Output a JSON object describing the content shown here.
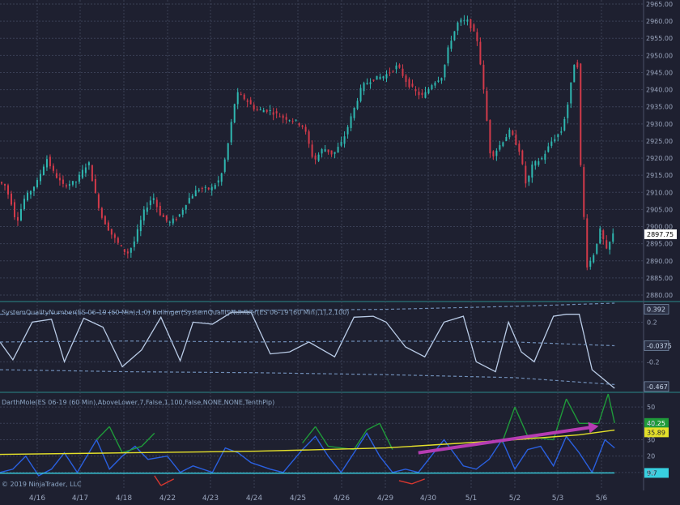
{
  "chart_data": [
    {
      "type": "candlestick",
      "title": "",
      "ylim": [
        2880,
        2965
      ],
      "ytick_labels": [
        "2965.00",
        "2960.00",
        "2955.00",
        "2950.00",
        "2945.00",
        "2940.00",
        "2935.00",
        "2930.00",
        "2925.00",
        "2920.00",
        "2915.00",
        "2910.00",
        "2905.00",
        "2900.00",
        "2895.00",
        "2890.00",
        "2885.00",
        "2880.00"
      ],
      "last_price": "2897.75",
      "up_color": "#2fb7b0",
      "down_color": "#d23a4a",
      "close_path": [
        {
          "x": 0,
          "y": 2913
        },
        {
          "x": 0.01,
          "y": 2912
        },
        {
          "x": 0.02,
          "y": 2907
        },
        {
          "x": 0.028,
          "y": 2901
        },
        {
          "x": 0.04,
          "y": 2908
        },
        {
          "x": 0.06,
          "y": 2913
        },
        {
          "x": 0.075,
          "y": 2920
        },
        {
          "x": 0.085,
          "y": 2916
        },
        {
          "x": 0.1,
          "y": 2912
        },
        {
          "x": 0.12,
          "y": 2913
        },
        {
          "x": 0.14,
          "y": 2919
        },
        {
          "x": 0.15,
          "y": 2910
        },
        {
          "x": 0.16,
          "y": 2903
        },
        {
          "x": 0.175,
          "y": 2898
        },
        {
          "x": 0.19,
          "y": 2894
        },
        {
          "x": 0.2,
          "y": 2892
        },
        {
          "x": 0.21,
          "y": 2895
        },
        {
          "x": 0.225,
          "y": 2904
        },
        {
          "x": 0.24,
          "y": 2909
        },
        {
          "x": 0.25,
          "y": 2904
        },
        {
          "x": 0.265,
          "y": 2901
        },
        {
          "x": 0.28,
          "y": 2903
        },
        {
          "x": 0.295,
          "y": 2908
        },
        {
          "x": 0.31,
          "y": 2911
        },
        {
          "x": 0.33,
          "y": 2911
        },
        {
          "x": 0.345,
          "y": 2914
        },
        {
          "x": 0.355,
          "y": 2922
        },
        {
          "x": 0.365,
          "y": 2934
        },
        {
          "x": 0.37,
          "y": 2939
        },
        {
          "x": 0.385,
          "y": 2937
        },
        {
          "x": 0.4,
          "y": 2934
        },
        {
          "x": 0.42,
          "y": 2934
        },
        {
          "x": 0.44,
          "y": 2932
        },
        {
          "x": 0.46,
          "y": 2931
        },
        {
          "x": 0.475,
          "y": 2929
        },
        {
          "x": 0.49,
          "y": 2919
        },
        {
          "x": 0.505,
          "y": 2923
        },
        {
          "x": 0.52,
          "y": 2921
        },
        {
          "x": 0.535,
          "y": 2925
        },
        {
          "x": 0.55,
          "y": 2933
        },
        {
          "x": 0.565,
          "y": 2941
        },
        {
          "x": 0.58,
          "y": 2943
        },
        {
          "x": 0.6,
          "y": 2944
        },
        {
          "x": 0.62,
          "y": 2947
        },
        {
          "x": 0.635,
          "y": 2942
        },
        {
          "x": 0.65,
          "y": 2939
        },
        {
          "x": 0.66,
          "y": 2938
        },
        {
          "x": 0.675,
          "y": 2942
        },
        {
          "x": 0.69,
          "y": 2944
        },
        {
          "x": 0.7,
          "y": 2953
        },
        {
          "x": 0.715,
          "y": 2960
        },
        {
          "x": 0.73,
          "y": 2960
        },
        {
          "x": 0.745,
          "y": 2954
        },
        {
          "x": 0.755,
          "y": 2938
        },
        {
          "x": 0.765,
          "y": 2920
        },
        {
          "x": 0.78,
          "y": 2924
        },
        {
          "x": 0.795,
          "y": 2928
        },
        {
          "x": 0.81,
          "y": 2922
        },
        {
          "x": 0.82,
          "y": 2912
        },
        {
          "x": 0.83,
          "y": 2918
        },
        {
          "x": 0.845,
          "y": 2920
        },
        {
          "x": 0.86,
          "y": 2925
        },
        {
          "x": 0.875,
          "y": 2928
        },
        {
          "x": 0.885,
          "y": 2936
        },
        {
          "x": 0.895,
          "y": 2948
        },
        {
          "x": 0.9,
          "y": 2947
        },
        {
          "x": 0.905,
          "y": 2916
        },
        {
          "x": 0.915,
          "y": 2888
        },
        {
          "x": 0.925,
          "y": 2892
        },
        {
          "x": 0.935,
          "y": 2899
        },
        {
          "x": 0.945,
          "y": 2893
        },
        {
          "x": 0.955,
          "y": 2897.75
        }
      ]
    },
    {
      "type": "line",
      "label": "SystemQualityNumber(ES 06-19 (60 Min),1,0)  Bollinger(SystemQualityNumber(ES 06-19 (60 Min),1),2,100)",
      "ylim": [
        -0.5,
        0.4
      ],
      "ytick_labels": [
        "0.2",
        "-0.2"
      ],
      "last_value": "0.392",
      "middle_band_value": "-0.0375",
      "lower_value": "-0.467",
      "series": [
        {
          "role": "sqn",
          "color": "#b9cbe6",
          "points": [
            {
              "x": 0,
              "y": 0.0
            },
            {
              "x": 0.02,
              "y": -0.18
            },
            {
              "x": 0.05,
              "y": 0.2
            },
            {
              "x": 0.08,
              "y": 0.23
            },
            {
              "x": 0.1,
              "y": -0.2
            },
            {
              "x": 0.13,
              "y": 0.24
            },
            {
              "x": 0.16,
              "y": 0.15
            },
            {
              "x": 0.19,
              "y": -0.25
            },
            {
              "x": 0.22,
              "y": -0.08
            },
            {
              "x": 0.25,
              "y": 0.25
            },
            {
              "x": 0.28,
              "y": -0.19
            },
            {
              "x": 0.3,
              "y": 0.2
            },
            {
              "x": 0.33,
              "y": 0.18
            },
            {
              "x": 0.36,
              "y": 0.3
            },
            {
              "x": 0.39,
              "y": 0.3
            },
            {
              "x": 0.42,
              "y": -0.12
            },
            {
              "x": 0.45,
              "y": -0.1
            },
            {
              "x": 0.48,
              "y": 0.0
            },
            {
              "x": 0.52,
              "y": -0.15
            },
            {
              "x": 0.55,
              "y": 0.25
            },
            {
              "x": 0.58,
              "y": 0.26
            },
            {
              "x": 0.6,
              "y": 0.2
            },
            {
              "x": 0.63,
              "y": -0.05
            },
            {
              "x": 0.66,
              "y": -0.15
            },
            {
              "x": 0.69,
              "y": 0.2
            },
            {
              "x": 0.72,
              "y": 0.26
            },
            {
              "x": 0.74,
              "y": -0.2
            },
            {
              "x": 0.77,
              "y": -0.3
            },
            {
              "x": 0.79,
              "y": 0.2
            },
            {
              "x": 0.81,
              "y": -0.1
            },
            {
              "x": 0.83,
              "y": -0.2
            },
            {
              "x": 0.86,
              "y": 0.26
            },
            {
              "x": 0.88,
              "y": 0.28
            },
            {
              "x": 0.9,
              "y": 0.28
            },
            {
              "x": 0.92,
              "y": -0.28
            },
            {
              "x": 0.955,
              "y": -0.467
            }
          ]
        },
        {
          "role": "upper-band",
          "color": "#6f8cb5",
          "points": [
            {
              "x": 0,
              "y": 0.28
            },
            {
              "x": 0.2,
              "y": 0.3
            },
            {
              "x": 0.4,
              "y": 0.32
            },
            {
              "x": 0.6,
              "y": 0.33
            },
            {
              "x": 0.8,
              "y": 0.36
            },
            {
              "x": 0.955,
              "y": 0.392
            }
          ]
        },
        {
          "role": "middle-band",
          "color": "#6f8cb5",
          "points": [
            {
              "x": 0,
              "y": 0.0
            },
            {
              "x": 0.2,
              "y": 0.01
            },
            {
              "x": 0.4,
              "y": 0.0
            },
            {
              "x": 0.6,
              "y": 0.01
            },
            {
              "x": 0.8,
              "y": 0.0
            },
            {
              "x": 0.955,
              "y": -0.0375
            }
          ]
        },
        {
          "role": "lower-band",
          "color": "#6f8cb5",
          "points": [
            {
              "x": 0,
              "y": -0.28
            },
            {
              "x": 0.2,
              "y": -0.3
            },
            {
              "x": 0.4,
              "y": -0.31
            },
            {
              "x": 0.6,
              "y": -0.33
            },
            {
              "x": 0.8,
              "y": -0.36
            },
            {
              "x": 0.955,
              "y": -0.43
            }
          ]
        }
      ]
    },
    {
      "type": "line",
      "label": "DarthMole(ES 06-19 (60 Min),AboveLower,7,False,1,100,False,NONE,NONE,TenthPip)",
      "ylim": [
        0,
        58
      ],
      "ytick_labels": [
        "50",
        "40",
        "30",
        "20",
        "10"
      ],
      "green_value": "40.25",
      "yellow_value": "35.89",
      "cyan_value": "9.7",
      "series": [
        {
          "role": "oscillator",
          "color": "#2a60e0",
          "points": [
            {
              "x": 0,
              "y": 10
            },
            {
              "x": 0.02,
              "y": 12
            },
            {
              "x": 0.04,
              "y": 20
            },
            {
              "x": 0.06,
              "y": 8
            },
            {
              "x": 0.08,
              "y": 12
            },
            {
              "x": 0.1,
              "y": 22
            },
            {
              "x": 0.12,
              "y": 10
            },
            {
              "x": 0.15,
              "y": 30
            },
            {
              "x": 0.17,
              "y": 12
            },
            {
              "x": 0.19,
              "y": 20
            },
            {
              "x": 0.21,
              "y": 26
            },
            {
              "x": 0.23,
              "y": 18
            },
            {
              "x": 0.26,
              "y": 20
            },
            {
              "x": 0.28,
              "y": 10
            },
            {
              "x": 0.3,
              "y": 14
            },
            {
              "x": 0.33,
              "y": 10
            },
            {
              "x": 0.35,
              "y": 25
            },
            {
              "x": 0.37,
              "y": 22
            },
            {
              "x": 0.39,
              "y": 16
            },
            {
              "x": 0.42,
              "y": 12
            },
            {
              "x": 0.44,
              "y": 10
            },
            {
              "x": 0.47,
              "y": 24
            },
            {
              "x": 0.49,
              "y": 32
            },
            {
              "x": 0.51,
              "y": 20
            },
            {
              "x": 0.53,
              "y": 10
            },
            {
              "x": 0.55,
              "y": 22
            },
            {
              "x": 0.57,
              "y": 34
            },
            {
              "x": 0.59,
              "y": 20
            },
            {
              "x": 0.61,
              "y": 10
            },
            {
              "x": 0.63,
              "y": 12
            },
            {
              "x": 0.65,
              "y": 10
            },
            {
              "x": 0.67,
              "y": 20
            },
            {
              "x": 0.69,
              "y": 30
            },
            {
              "x": 0.72,
              "y": 14
            },
            {
              "x": 0.74,
              "y": 12
            },
            {
              "x": 0.76,
              "y": 18
            },
            {
              "x": 0.78,
              "y": 30
            },
            {
              "x": 0.8,
              "y": 12
            },
            {
              "x": 0.82,
              "y": 24
            },
            {
              "x": 0.84,
              "y": 26
            },
            {
              "x": 0.86,
              "y": 14
            },
            {
              "x": 0.88,
              "y": 32
            },
            {
              "x": 0.9,
              "y": 22
            },
            {
              "x": 0.92,
              "y": 10
            },
            {
              "x": 0.94,
              "y": 30
            },
            {
              "x": 0.955,
              "y": 25
            }
          ]
        },
        {
          "role": "oscillator-high",
          "color": "#1f9a3a",
          "points": [
            {
              "x": 0.15,
              "y": 30
            },
            {
              "x": 0.17,
              "y": 38
            },
            {
              "x": 0.19,
              "y": 22
            },
            {
              "x": 0.22,
              "y": 26
            },
            {
              "x": 0.24,
              "y": 34
            },
            {
              "x": 0.47,
              "y": 28
            },
            {
              "x": 0.49,
              "y": 38
            },
            {
              "x": 0.51,
              "y": 26
            },
            {
              "x": 0.55,
              "y": 24
            },
            {
              "x": 0.57,
              "y": 36
            },
            {
              "x": 0.59,
              "y": 40
            },
            {
              "x": 0.61,
              "y": 24
            },
            {
              "x": 0.78,
              "y": 28
            },
            {
              "x": 0.8,
              "y": 50
            },
            {
              "x": 0.82,
              "y": 32
            },
            {
              "x": 0.86,
              "y": 30
            },
            {
              "x": 0.88,
              "y": 55
            },
            {
              "x": 0.9,
              "y": 40
            },
            {
              "x": 0.93,
              "y": 40
            },
            {
              "x": 0.945,
              "y": 58
            },
            {
              "x": 0.955,
              "y": 40.25
            }
          ]
        },
        {
          "role": "oscillator-low",
          "color": "#d7372f",
          "points": [
            {
              "x": 0.24,
              "y": 8
            },
            {
              "x": 0.25,
              "y": 2
            },
            {
              "x": 0.27,
              "y": 6
            },
            {
              "x": 0.62,
              "y": 5
            },
            {
              "x": 0.64,
              "y": 3
            },
            {
              "x": 0.66,
              "y": 6
            }
          ]
        },
        {
          "role": "signal-yellow",
          "color": "#e4e02a",
          "points": [
            {
              "x": 0,
              "y": 21
            },
            {
              "x": 0.2,
              "y": 22
            },
            {
              "x": 0.4,
              "y": 23
            },
            {
              "x": 0.6,
              "y": 25
            },
            {
              "x": 0.8,
              "y": 30
            },
            {
              "x": 0.9,
              "y": 33
            },
            {
              "x": 0.955,
              "y": 35.89
            }
          ]
        },
        {
          "role": "baseline-cyan",
          "color": "#38d0e0",
          "points": [
            {
              "x": 0,
              "y": 9.5
            },
            {
              "x": 0.5,
              "y": 9.5
            },
            {
              "x": 0.955,
              "y": 9.7
            }
          ]
        }
      ],
      "arrow_color": "#b53cb2",
      "arrow": {
        "from": [
          0.65,
          22
        ],
        "to": [
          0.925,
          38
        ]
      }
    }
  ],
  "x_axis": {
    "labels": [
      "4/16",
      "4/17",
      "4/18",
      "4/22",
      "4/23",
      "4/24",
      "4/25",
      "4/26",
      "4/29",
      "4/30",
      "5/1",
      "5/2",
      "5/3",
      "5/6"
    ]
  },
  "copyright": "© 2019 NinjaTrader, LLC"
}
